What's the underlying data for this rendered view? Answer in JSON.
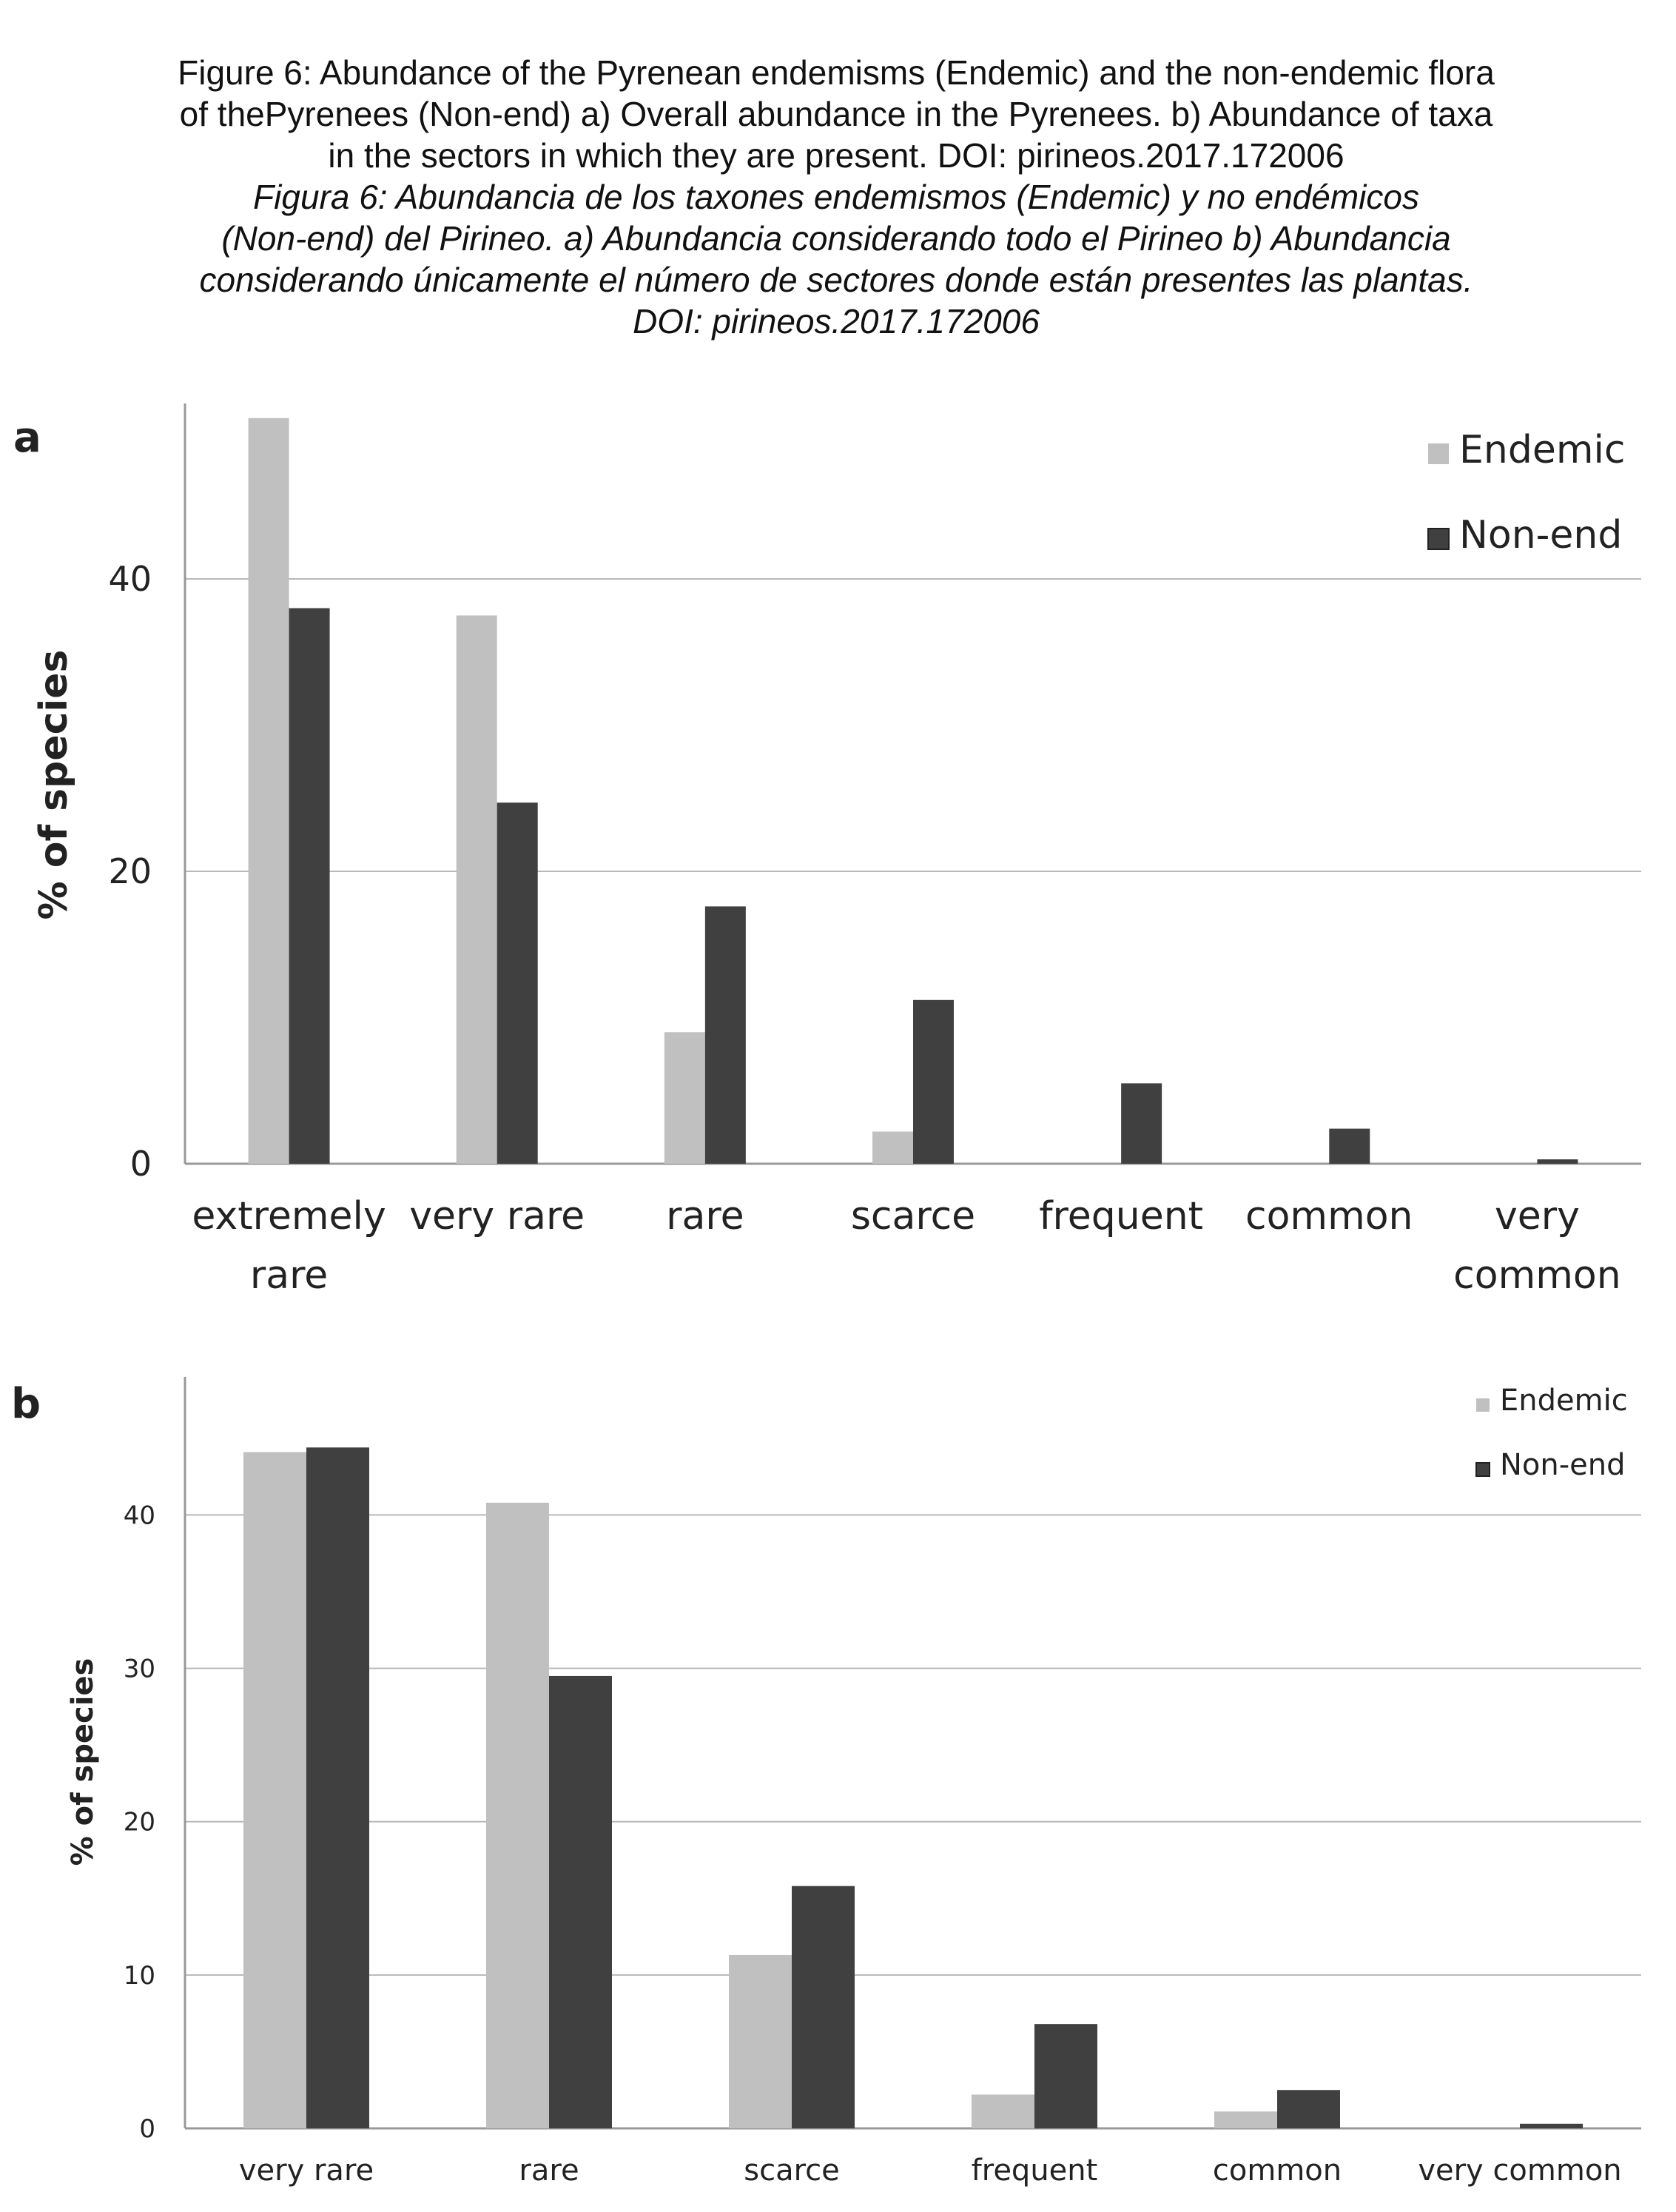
{
  "caption": {
    "en_line1": "Figure 6: Abundance of the Pyrenean endemisms (Endemic) and the non-endemic flora",
    "en_line2": "of thePyrenees (Non-end) a) Overall abundance in the Pyrenees. b) Abundance of taxa",
    "en_line3": "in the sectors in which they are present. DOI: pirineos.2017.172006",
    "es_line1": "Figura 6: Abundancia de los taxones endemismos (Endemic) y no endémicos",
    "es_line2": "(Non-end) del Pirineo. a) Abundancia considerando todo el Pirineo b) Abundancia",
    "es_line3": "considerando únicamente el número de sectores donde están presentes las plantas.",
    "es_line4": "DOI: pirineos.2017.172006"
  },
  "colors": {
    "endemic": "#c0c0c0",
    "nonend": "#404040",
    "grid": "#b8b8b8",
    "axis": "#999999"
  },
  "chart_data": [
    {
      "panel": "a",
      "type": "bar",
      "categories": [
        [
          "extremely",
          "rare"
        ],
        [
          "very rare"
        ],
        [
          "rare"
        ],
        [
          "scarce"
        ],
        [
          "frequent"
        ],
        [
          "common"
        ],
        [
          "very",
          "common"
        ]
      ],
      "series": [
        {
          "name": "Endemic",
          "values": [
            51,
            37.5,
            9,
            2.2,
            0,
            0,
            0
          ]
        },
        {
          "name": "Non-end",
          "values": [
            38,
            24.7,
            17.6,
            11.2,
            5.5,
            2.4,
            0.3
          ]
        }
      ],
      "ylabel": "% of species",
      "yticks": [
        0,
        20,
        40
      ],
      "ylim": [
        0,
        52
      ],
      "legend": "top-right",
      "grid": true
    },
    {
      "panel": "b",
      "type": "bar",
      "categories": [
        [
          "very rare"
        ],
        [
          "rare"
        ],
        [
          "scarce"
        ],
        [
          "frequent"
        ],
        [
          "common"
        ],
        [
          "very common"
        ]
      ],
      "series": [
        {
          "name": "Endemic",
          "values": [
            44.1,
            40.8,
            11.3,
            2.2,
            1.1,
            0
          ]
        },
        {
          "name": "Non-end",
          "values": [
            44.4,
            29.5,
            15.8,
            6.8,
            2.5,
            0.3
          ]
        }
      ],
      "ylabel": "% of species",
      "yticks": [
        0,
        10,
        20,
        30,
        40
      ],
      "ylim": [
        0,
        49
      ],
      "legend": "top-right",
      "grid": true
    }
  ]
}
